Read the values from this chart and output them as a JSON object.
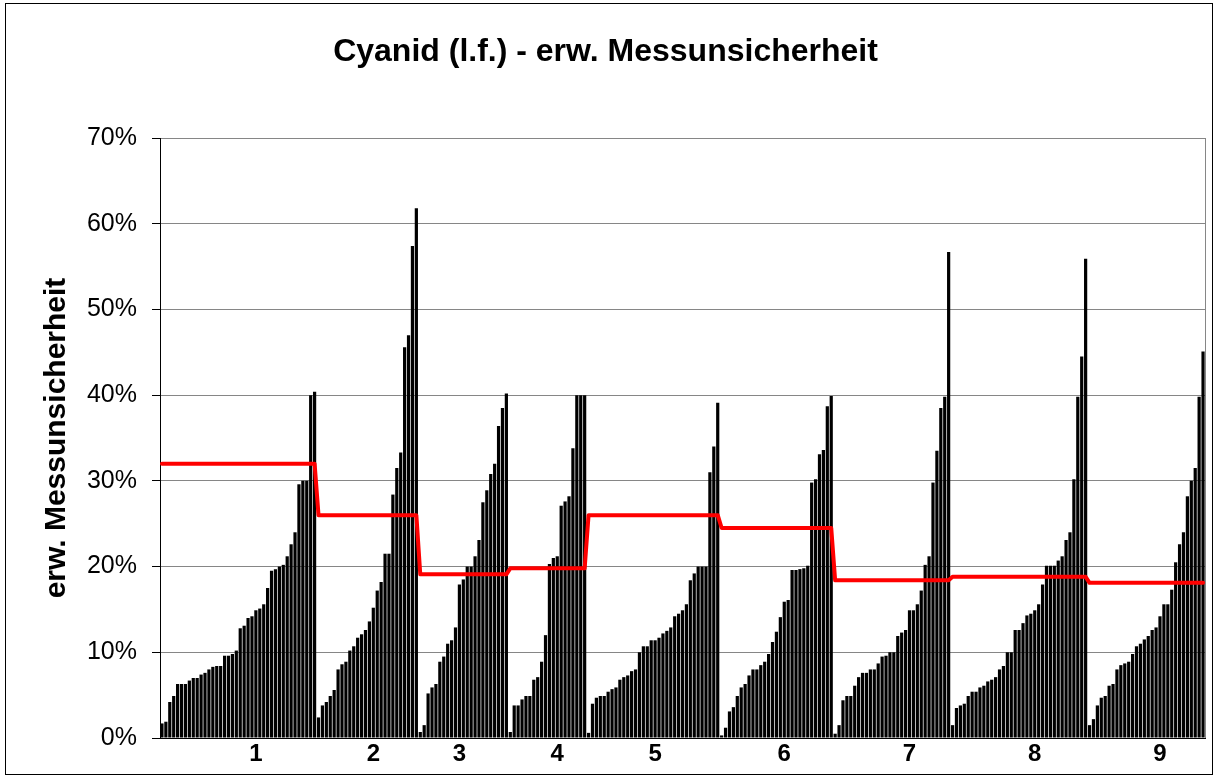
{
  "chart_data": {
    "type": "bar",
    "title": "Cyanid (l.f.) - erw. Messunsicherheit",
    "ylabel": "erw. Messunsicherheit",
    "categories": [
      null,
      null,
      null,
      null,
      null,
      null,
      null,
      null,
      null,
      null,
      null,
      null,
      null,
      null,
      null,
      null,
      null,
      null,
      null,
      null,
      null,
      null,
      null,
      null,
      "1",
      null,
      null,
      null,
      null,
      null,
      null,
      null,
      null,
      null,
      null,
      null,
      null,
      null,
      null,
      null,
      null,
      null,
      null,
      null,
      null,
      null,
      null,
      null,
      null,
      null,
      null,
      null,
      null,
      null,
      "2",
      null,
      null,
      null,
      null,
      null,
      null,
      null,
      null,
      null,
      null,
      null,
      null,
      null,
      null,
      null,
      null,
      null,
      null,
      null,
      null,
      null,
      "3",
      null,
      null,
      null,
      null,
      null,
      null,
      null,
      null,
      null,
      null,
      null,
      null,
      null,
      null,
      null,
      null,
      null,
      null,
      null,
      null,
      null,
      null,
      null,
      null,
      "4",
      null,
      null,
      null,
      null,
      null,
      null,
      null,
      null,
      null,
      null,
      null,
      null,
      null,
      null,
      null,
      null,
      null,
      null,
      null,
      null,
      null,
      null,
      null,
      null,
      "5",
      null,
      null,
      null,
      null,
      null,
      null,
      null,
      null,
      null,
      null,
      null,
      null,
      null,
      null,
      null,
      null,
      null,
      null,
      null,
      null,
      null,
      null,
      null,
      null,
      null,
      null,
      null,
      null,
      null,
      null,
      null,
      null,
      "6",
      null,
      null,
      null,
      null,
      null,
      null,
      null,
      null,
      null,
      null,
      null,
      null,
      null,
      null,
      null,
      null,
      null,
      null,
      null,
      null,
      null,
      null,
      null,
      null,
      null,
      null,
      null,
      null,
      null,
      null,
      null,
      "7",
      null,
      null,
      null,
      null,
      null,
      null,
      null,
      null,
      null,
      null,
      null,
      null,
      null,
      null,
      null,
      null,
      null,
      null,
      null,
      null,
      null,
      null,
      null,
      null,
      null,
      null,
      null,
      null,
      null,
      null,
      null,
      "8",
      null,
      null,
      null,
      null,
      null,
      null,
      null,
      null,
      null,
      null,
      null,
      null,
      null,
      null,
      null,
      null,
      null,
      null,
      null,
      null,
      null,
      null,
      null,
      null,
      null,
      null,
      null,
      null,
      null,
      null,
      null,
      "9",
      null,
      null,
      null,
      null,
      null,
      null,
      null,
      null,
      null,
      null,
      null
    ],
    "series": [
      {
        "color": "#000000",
        "values": [
          1.7,
          1.9,
          4.2,
          4.9,
          6.3,
          6.3,
          6.3,
          6.7,
          7.0,
          7.0,
          7.4,
          7.6,
          8.0,
          8.3,
          8.4,
          8.4,
          9.6,
          9.6,
          9.8,
          10.2,
          12.8,
          13.1,
          14.0,
          14.2,
          14.9,
          15.1,
          15.6,
          17.5,
          19.5,
          19.7,
          20.0,
          20.2,
          21.2,
          22.6,
          24.0,
          29.6,
          30.0,
          30.0,
          40.0,
          40.4,
          2.4,
          3.8,
          4.2,
          4.9,
          5.6,
          8.0,
          8.6,
          8.9,
          10.2,
          10.7,
          11.7,
          12.1,
          12.6,
          13.6,
          15.2,
          17.2,
          18.2,
          21.5,
          21.5,
          28.4,
          31.5,
          33.3,
          45.6,
          47.0,
          57.4,
          61.8,
          0.7,
          1.5,
          5.2,
          5.9,
          6.3,
          8.9,
          9.5,
          11.0,
          11.4,
          12.9,
          17.9,
          18.5,
          20.0,
          20.0,
          21.2,
          23.1,
          27.5,
          28.9,
          30.8,
          32.0,
          36.4,
          38.5,
          40.2,
          0.7,
          3.8,
          3.8,
          4.5,
          4.9,
          4.9,
          6.8,
          7.1,
          8.9,
          12.0,
          20.3,
          21.0,
          21.2,
          27.1,
          27.6,
          28.2,
          33.8,
          40.0,
          40.0,
          40.0,
          0.6,
          4.0,
          4.7,
          4.9,
          4.9,
          5.4,
          5.7,
          5.9,
          6.8,
          7.1,
          7.3,
          7.8,
          8.0,
          10.0,
          10.7,
          10.7,
          11.4,
          11.4,
          11.7,
          12.2,
          12.5,
          12.9,
          14.2,
          14.5,
          14.9,
          15.6,
          18.4,
          19.2,
          20.0,
          20.0,
          20.0,
          31.0,
          34.0,
          39.1,
          0.3,
          1.2,
          3.1,
          3.6,
          4.9,
          5.9,
          6.3,
          7.3,
          8.0,
          8.0,
          8.5,
          8.9,
          9.8,
          11.2,
          12.4,
          14.1,
          15.9,
          16.1,
          19.6,
          19.6,
          19.7,
          19.8,
          20.1,
          29.8,
          30.2,
          33.1,
          33.6,
          38.7,
          39.9,
          0.5,
          1.5,
          4.4,
          4.9,
          4.9,
          6.1,
          7.1,
          7.6,
          7.6,
          8.0,
          8.0,
          8.7,
          9.5,
          9.6,
          10.0,
          10.0,
          11.9,
          12.3,
          12.6,
          14.9,
          14.9,
          15.6,
          17.2,
          20.2,
          21.2,
          29.8,
          33.5,
          38.5,
          39.8,
          56.7,
          1.5,
          3.5,
          3.8,
          4.0,
          4.9,
          5.4,
          5.4,
          5.9,
          6.1,
          6.6,
          6.8,
          7.1,
          8.0,
          8.4,
          10.0,
          10.0,
          12.6,
          12.6,
          13.4,
          14.3,
          14.5,
          14.9,
          15.6,
          17.9,
          20.1,
          20.1,
          20.1,
          20.7,
          21.2,
          23.1,
          24.0,
          30.2,
          39.8,
          44.5,
          55.9,
          1.5,
          2.2,
          3.8,
          4.7,
          4.9,
          6.1,
          6.3,
          8.0,
          8.5,
          8.7,
          8.9,
          9.8,
          10.7,
          11.0,
          11.5,
          11.9,
          12.6,
          12.9,
          14.2,
          15.6,
          15.6,
          17.3,
          20.5,
          22.6,
          24.0,
          28.2,
          30.0,
          31.5,
          39.8,
          45.1
        ]
      },
      {
        "type": "line",
        "color": "#ff0000",
        "values": [
          32,
          32,
          32,
          32,
          32,
          32,
          32,
          32,
          32,
          32,
          32,
          32,
          32,
          32,
          32,
          32,
          32,
          32,
          32,
          32,
          32,
          32,
          32,
          32,
          32,
          32,
          32,
          32,
          32,
          32,
          32,
          32,
          32,
          32,
          32,
          32,
          32,
          32,
          32,
          32,
          26,
          26,
          26,
          26,
          26,
          26,
          26,
          26,
          26,
          26,
          26,
          26,
          26,
          26,
          26,
          26,
          26,
          26,
          26,
          26,
          26,
          26,
          26,
          26,
          26,
          26,
          19.1,
          19.1,
          19.1,
          19.1,
          19.1,
          19.1,
          19.1,
          19.1,
          19.1,
          19.1,
          19.1,
          19.1,
          19.1,
          19.1,
          19.1,
          19.1,
          19.1,
          19.1,
          19.1,
          19.1,
          19.1,
          19.1,
          19.1,
          19.8,
          19.8,
          19.8,
          19.8,
          19.8,
          19.8,
          19.8,
          19.8,
          19.8,
          19.8,
          19.8,
          19.8,
          19.8,
          19.8,
          19.8,
          19.8,
          19.8,
          19.8,
          19.8,
          19.8,
          26,
          26,
          26,
          26,
          26,
          26,
          26,
          26,
          26,
          26,
          26,
          26,
          26,
          26,
          26,
          26,
          26,
          26,
          26,
          26,
          26,
          26,
          26,
          26,
          26,
          26,
          26,
          26,
          26,
          26,
          26,
          26,
          26,
          26,
          24.5,
          24.5,
          24.5,
          24.5,
          24.5,
          24.5,
          24.5,
          24.5,
          24.5,
          24.5,
          24.5,
          24.5,
          24.5,
          24.5,
          24.5,
          24.5,
          24.5,
          24.5,
          24.5,
          24.5,
          24.5,
          24.5,
          24.5,
          24.5,
          24.5,
          24.5,
          24.5,
          24.5,
          24.5,
          18.4,
          18.4,
          18.4,
          18.4,
          18.4,
          18.4,
          18.4,
          18.4,
          18.4,
          18.4,
          18.4,
          18.4,
          18.4,
          18.4,
          18.4,
          18.4,
          18.4,
          18.4,
          18.4,
          18.4,
          18.4,
          18.4,
          18.4,
          18.4,
          18.4,
          18.4,
          18.4,
          18.4,
          18.4,
          18.4,
          18.8,
          18.8,
          18.8,
          18.8,
          18.8,
          18.8,
          18.8,
          18.8,
          18.8,
          18.8,
          18.8,
          18.8,
          18.8,
          18.8,
          18.8,
          18.8,
          18.8,
          18.8,
          18.8,
          18.8,
          18.8,
          18.8,
          18.8,
          18.8,
          18.8,
          18.8,
          18.8,
          18.8,
          18.8,
          18.8,
          18.8,
          18.8,
          18.8,
          18.8,
          18.8,
          18.1,
          18.1,
          18.1,
          18.1,
          18.1,
          18.1,
          18.1,
          18.1,
          18.1,
          18.1,
          18.1,
          18.1,
          18.1,
          18.1,
          18.1,
          18.1,
          18.1,
          18.1,
          18.1,
          18.1,
          18.1,
          18.1,
          18.1,
          18.1,
          18.1,
          18.1,
          18.1,
          18.1,
          18.1,
          18.1
        ]
      }
    ],
    "ylim": [
      0,
      70
    ],
    "yticks": [
      {
        "value": 0,
        "label": "0%"
      },
      {
        "value": 10,
        "label": "10%"
      },
      {
        "value": 20,
        "label": "20%"
      },
      {
        "value": 30,
        "label": "30%"
      },
      {
        "value": 40,
        "label": "40%"
      },
      {
        "value": 50,
        "label": "50%"
      },
      {
        "value": 60,
        "label": "60%"
      },
      {
        "value": 70,
        "label": "70%"
      }
    ],
    "grid": "y",
    "legend": false,
    "marker": "none"
  }
}
